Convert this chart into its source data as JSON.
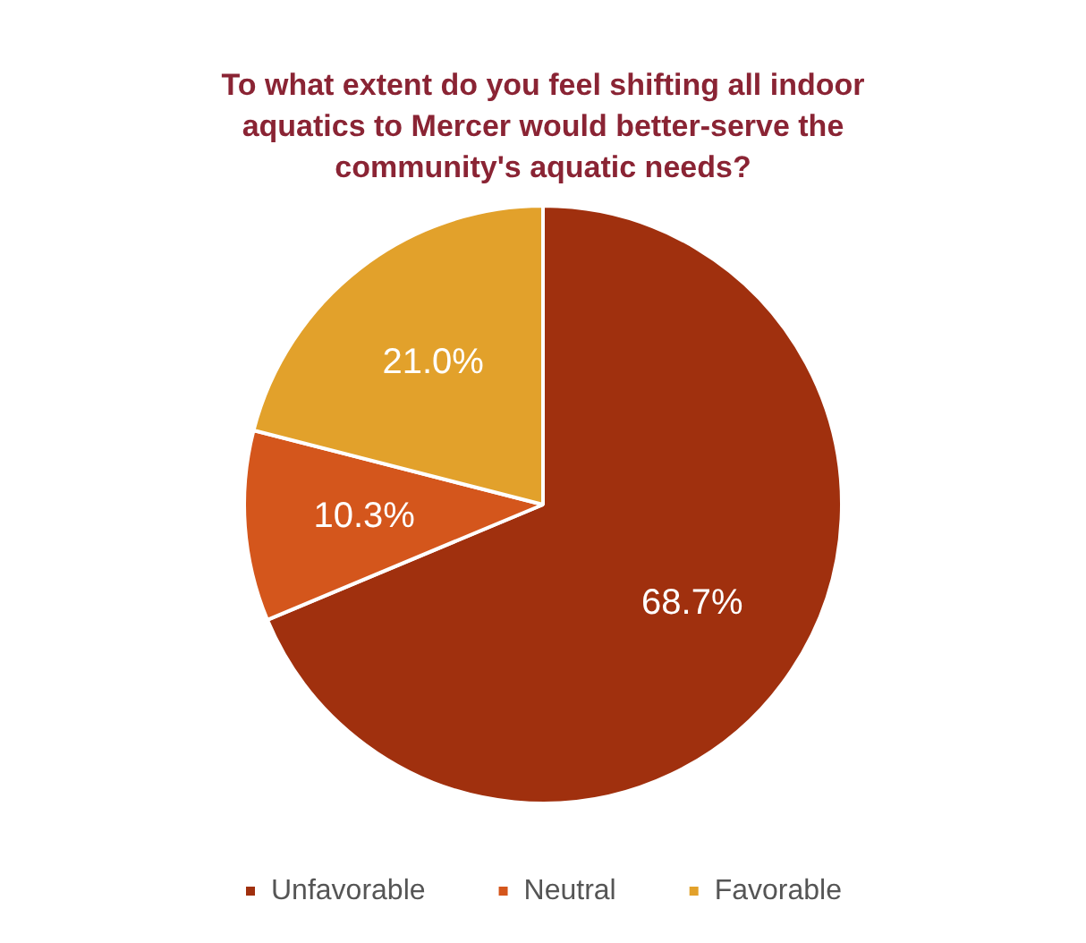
{
  "chart_data": {
    "type": "pie",
    "title": "To what extent do you feel shifting all indoor aquatics to Mercer would better-serve the community's aquatic needs?",
    "categories": [
      "Unfavorable",
      "Neutral",
      "Favorable"
    ],
    "values": [
      68.7,
      10.3,
      21.0
    ],
    "colors": [
      "#a0300e",
      "#d4561c",
      "#e2a12b"
    ],
    "value_labels": [
      "68.7%",
      "10.3%",
      "21.0%"
    ],
    "legend": "bottom"
  }
}
